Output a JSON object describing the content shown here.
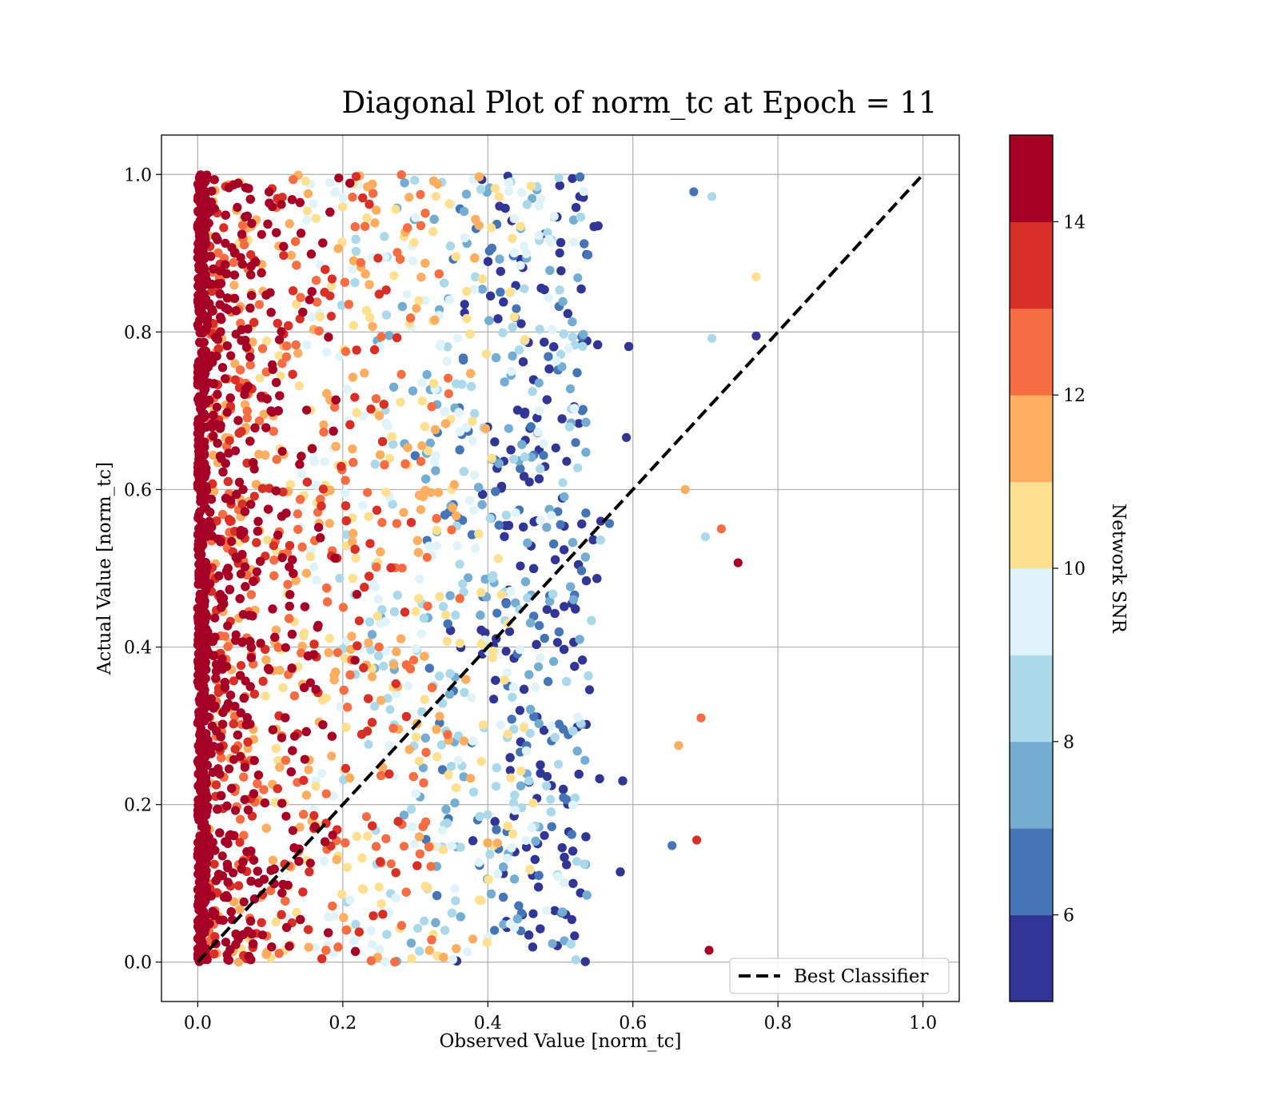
{
  "chart_data": {
    "type": "scatter",
    "title": "Diagonal Plot of norm_tc at Epoch = 11",
    "xlabel": "Observed Value [norm_tc]",
    "ylabel": "Actual Value [norm_tc]",
    "xlim": [
      -0.05,
      1.05
    ],
    "ylim": [
      -0.05,
      1.05
    ],
    "x_ticks": [
      "0.0",
      "0.2",
      "0.4",
      "0.6",
      "0.8",
      "1.0"
    ],
    "y_ticks": [
      "0.0",
      "0.2",
      "0.4",
      "0.6",
      "0.8",
      "1.0"
    ],
    "x_tick_values": [
      0,
      0.2,
      0.4,
      0.6,
      0.8,
      1.0
    ],
    "y_tick_values": [
      0,
      0.2,
      0.4,
      0.6,
      0.8,
      1.0
    ],
    "grid": true,
    "reference_line": {
      "name": "Best Classifier",
      "x": [
        0,
        1
      ],
      "y": [
        0,
        1
      ],
      "style": "dashed",
      "color": "#000000"
    },
    "legend": {
      "entries": [
        "Best Classifier"
      ],
      "placement": "lower-right"
    },
    "series": [
      {
        "type": "scatter",
        "x_range_observed": [
          0,
          0.77
        ],
        "y_range_actual": [
          0,
          1
        ],
        "color_by": "Network SNR",
        "color_range": [
          5,
          15
        ],
        "sample_points": [
          {
            "x": 0.01,
            "y": 0.5,
            "snr": 15
          },
          {
            "x": 0.1,
            "y": 0.85,
            "snr": 14
          },
          {
            "x": 0.25,
            "y": 0.4,
            "snr": 12
          },
          {
            "x": 0.35,
            "y": 0.6,
            "snr": 10
          },
          {
            "x": 0.45,
            "y": 0.3,
            "snr": 9
          },
          {
            "x": 0.53,
            "y": 0.7,
            "snr": 6
          },
          {
            "x": 0.745,
            "y": 0.507,
            "snr": 14
          },
          {
            "x": 0.705,
            "y": 0.015,
            "snr": 14.5
          },
          {
            "x": 0.77,
            "y": 0.87,
            "snr": 10
          },
          {
            "x": 0.77,
            "y": 0.795,
            "snr": 5.5
          },
          {
            "x": 0.722,
            "y": 0.55,
            "snr": 12.5
          },
          {
            "x": 0.694,
            "y": 0.31,
            "snr": 12
          },
          {
            "x": 0.688,
            "y": 0.155,
            "snr": 13
          },
          {
            "x": 0.672,
            "y": 0.6,
            "snr": 11.5
          },
          {
            "x": 0.684,
            "y": 0.978,
            "snr": 6.5
          },
          {
            "x": 0.709,
            "y": 0.972,
            "snr": 8
          },
          {
            "x": 0.709,
            "y": 0.792,
            "snr": 8
          },
          {
            "x": 0.7,
            "y": 0.54,
            "snr": 8
          },
          {
            "x": 0.663,
            "y": 0.275,
            "snr": 11.5
          },
          {
            "x": 0.654,
            "y": 0.148,
            "snr": 6.5
          }
        ]
      }
    ],
    "colorbar": {
      "label": "Network SNR",
      "min": 5,
      "max": 15,
      "ticks": [
        "6",
        "8",
        "10",
        "12",
        "14"
      ],
      "tick_values": [
        6,
        8,
        10,
        12,
        14
      ],
      "bands": [
        {
          "from": 5,
          "to": 6,
          "color": "#313695"
        },
        {
          "from": 6,
          "to": 7,
          "color": "#4575b4"
        },
        {
          "from": 7,
          "to": 8,
          "color": "#74add1"
        },
        {
          "from": 8,
          "to": 9,
          "color": "#abd9e9"
        },
        {
          "from": 9,
          "to": 10,
          "color": "#e0f3f8"
        },
        {
          "from": 10,
          "to": 11,
          "color": "#fee090"
        },
        {
          "from": 11,
          "to": 12,
          "color": "#fdae61"
        },
        {
          "from": 12,
          "to": 13,
          "color": "#f46d43"
        },
        {
          "from": 13,
          "to": 14,
          "color": "#d73027"
        },
        {
          "from": 14,
          "to": 15,
          "color": "#a50026"
        }
      ]
    }
  }
}
